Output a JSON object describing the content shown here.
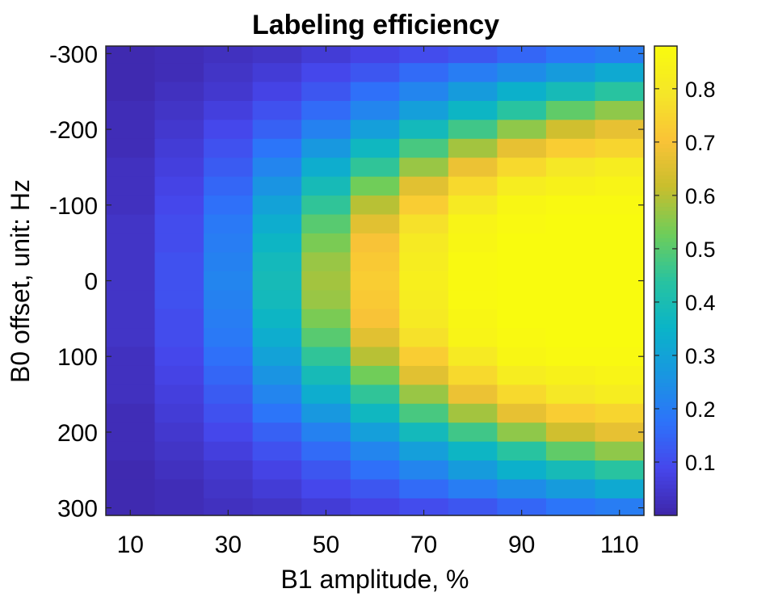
{
  "chart_data": {
    "type": "heatmap",
    "title": "Labeling efficiency",
    "xlabel": "B1 amplitude, %",
    "ylabel": "B0 offset, unit: Hz",
    "x": [
      10,
      20,
      30,
      40,
      50,
      60,
      70,
      80,
      90,
      100,
      110
    ],
    "x_ticks": [
      10,
      30,
      50,
      70,
      90,
      110
    ],
    "xlim": [
      5,
      115
    ],
    "y": [
      -300,
      -275,
      -250,
      -225,
      -200,
      -175,
      -150,
      -125,
      -100,
      -75,
      -50,
      -25,
      0,
      25,
      50,
      75,
      100,
      125,
      150,
      175,
      200,
      225,
      250,
      275,
      300
    ],
    "y_ticks": [
      -300,
      -200,
      -100,
      0,
      100,
      200,
      300
    ],
    "ylim": [
      -310,
      310
    ],
    "y_reversed": true,
    "colormap": "parula",
    "clim": [
      0,
      0.88
    ],
    "colorbar": {
      "ticks": [
        0.1,
        0.2,
        0.3,
        0.4,
        0.5,
        0.6,
        0.7,
        0.8
      ]
    },
    "z": [
      [
        0.01,
        0.02,
        0.03,
        0.04,
        0.06,
        0.08,
        0.1,
        0.12,
        0.15,
        0.18,
        0.2
      ],
      [
        0.01,
        0.02,
        0.04,
        0.06,
        0.09,
        0.12,
        0.16,
        0.2,
        0.24,
        0.28,
        0.32
      ],
      [
        0.01,
        0.03,
        0.05,
        0.08,
        0.12,
        0.17,
        0.22,
        0.28,
        0.34,
        0.39,
        0.44
      ],
      [
        0.02,
        0.04,
        0.07,
        0.11,
        0.16,
        0.22,
        0.29,
        0.36,
        0.44,
        0.51,
        0.56
      ],
      [
        0.02,
        0.05,
        0.09,
        0.14,
        0.21,
        0.29,
        0.38,
        0.47,
        0.56,
        0.63,
        0.67
      ],
      [
        0.02,
        0.06,
        0.11,
        0.18,
        0.27,
        0.37,
        0.48,
        0.58,
        0.67,
        0.73,
        0.75
      ],
      [
        0.03,
        0.07,
        0.13,
        0.22,
        0.33,
        0.45,
        0.57,
        0.68,
        0.76,
        0.8,
        0.82
      ],
      [
        0.03,
        0.08,
        0.15,
        0.26,
        0.39,
        0.53,
        0.66,
        0.76,
        0.82,
        0.84,
        0.85
      ],
      [
        0.03,
        0.09,
        0.17,
        0.3,
        0.45,
        0.6,
        0.73,
        0.81,
        0.86,
        0.87,
        0.87
      ],
      [
        0.04,
        0.1,
        0.19,
        0.33,
        0.5,
        0.66,
        0.78,
        0.85,
        0.87,
        0.88,
        0.88
      ],
      [
        0.04,
        0.1,
        0.2,
        0.36,
        0.54,
        0.7,
        0.81,
        0.86,
        0.88,
        0.88,
        0.88
      ],
      [
        0.04,
        0.11,
        0.21,
        0.38,
        0.57,
        0.72,
        0.82,
        0.87,
        0.88,
        0.88,
        0.88
      ],
      [
        0.04,
        0.11,
        0.22,
        0.39,
        0.58,
        0.73,
        0.83,
        0.87,
        0.88,
        0.88,
        0.88
      ],
      [
        0.04,
        0.11,
        0.21,
        0.38,
        0.57,
        0.72,
        0.82,
        0.87,
        0.88,
        0.88,
        0.88
      ],
      [
        0.04,
        0.1,
        0.2,
        0.36,
        0.54,
        0.7,
        0.81,
        0.86,
        0.88,
        0.88,
        0.88
      ],
      [
        0.04,
        0.1,
        0.19,
        0.33,
        0.5,
        0.66,
        0.78,
        0.85,
        0.87,
        0.88,
        0.88
      ],
      [
        0.03,
        0.09,
        0.17,
        0.3,
        0.45,
        0.6,
        0.73,
        0.81,
        0.86,
        0.87,
        0.87
      ],
      [
        0.03,
        0.08,
        0.15,
        0.26,
        0.39,
        0.53,
        0.66,
        0.76,
        0.82,
        0.84,
        0.85
      ],
      [
        0.03,
        0.07,
        0.13,
        0.22,
        0.33,
        0.45,
        0.57,
        0.68,
        0.76,
        0.8,
        0.82
      ],
      [
        0.02,
        0.06,
        0.11,
        0.18,
        0.27,
        0.37,
        0.48,
        0.58,
        0.67,
        0.73,
        0.75
      ],
      [
        0.02,
        0.05,
        0.09,
        0.14,
        0.21,
        0.29,
        0.38,
        0.47,
        0.56,
        0.63,
        0.67
      ],
      [
        0.02,
        0.04,
        0.07,
        0.11,
        0.16,
        0.22,
        0.29,
        0.36,
        0.44,
        0.51,
        0.56
      ],
      [
        0.01,
        0.03,
        0.05,
        0.08,
        0.12,
        0.17,
        0.22,
        0.28,
        0.34,
        0.39,
        0.44
      ],
      [
        0.01,
        0.02,
        0.04,
        0.06,
        0.09,
        0.12,
        0.16,
        0.2,
        0.24,
        0.28,
        0.32
      ],
      [
        0.01,
        0.02,
        0.03,
        0.04,
        0.06,
        0.08,
        0.1,
        0.12,
        0.15,
        0.18,
        0.2
      ]
    ]
  }
}
